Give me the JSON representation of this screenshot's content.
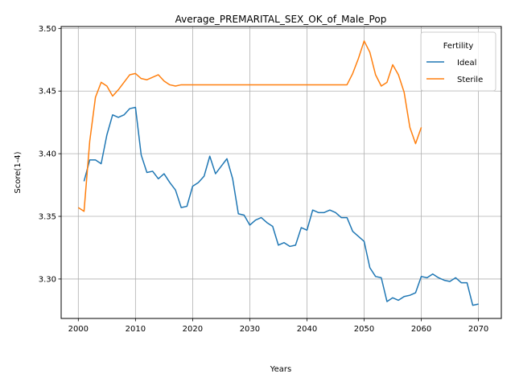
{
  "chart_data": {
    "type": "line",
    "title": "Average_PREMARITAL_SEX_OK_of_Male_Pop",
    "xlabel": "Years",
    "ylabel": "Score(1-4)",
    "xlim": [
      1997,
      2074
    ],
    "ylim": [
      3.2685,
      3.5015
    ],
    "xticks": [
      2000,
      2010,
      2020,
      2030,
      2040,
      2050,
      2060,
      2070
    ],
    "yticks": [
      3.3,
      3.35,
      3.4,
      3.45,
      3.5
    ],
    "ytick_labels": [
      "3.30",
      "3.35",
      "3.40",
      "3.45",
      "3.50"
    ],
    "grid": true,
    "legend": {
      "title": "Fertility",
      "placement": "top-right"
    },
    "series": [
      {
        "name": "Ideal",
        "color": "#1f77b4",
        "x": [
          2001,
          2002,
          2003,
          2004,
          2005,
          2006,
          2007,
          2008,
          2009,
          2010,
          2011,
          2012,
          2013,
          2014,
          2015,
          2016,
          2017,
          2018,
          2019,
          2020,
          2021,
          2022,
          2023,
          2024,
          2025,
          2026,
          2027,
          2028,
          2029,
          2030,
          2031,
          2032,
          2033,
          2034,
          2035,
          2036,
          2037,
          2038,
          2039,
          2040,
          2041,
          2042,
          2043,
          2044,
          2045,
          2046,
          2047,
          2048,
          2049,
          2050,
          2051,
          2052,
          2053,
          2054,
          2055,
          2056,
          2057,
          2058,
          2059,
          2060,
          2061,
          2062,
          2063,
          2064,
          2065,
          2066,
          2067,
          2068,
          2069,
          2070
        ],
        "y": [
          3.378,
          3.395,
          3.395,
          3.392,
          3.415,
          3.431,
          3.429,
          3.431,
          3.436,
          3.437,
          3.399,
          3.385,
          3.386,
          3.38,
          3.384,
          3.377,
          3.371,
          3.357,
          3.358,
          3.374,
          3.377,
          3.382,
          3.398,
          3.384,
          3.39,
          3.396,
          3.38,
          3.352,
          3.351,
          3.343,
          3.347,
          3.349,
          3.345,
          3.342,
          3.327,
          3.329,
          3.326,
          3.327,
          3.341,
          3.339,
          3.355,
          3.353,
          3.353,
          3.355,
          3.353,
          3.349,
          3.349,
          3.338,
          3.334,
          3.33,
          3.309,
          3.302,
          3.301,
          3.282,
          3.285,
          3.283,
          3.286,
          3.287,
          3.289,
          3.302,
          3.301,
          3.304,
          3.301,
          3.299,
          3.298,
          3.301,
          3.297,
          3.297,
          3.279,
          3.28
        ]
      },
      {
        "name": "Sterile",
        "color": "#ff7f0e",
        "x": [
          2000,
          2001,
          2002,
          2003,
          2004,
          2005,
          2006,
          2007,
          2008,
          2009,
          2010,
          2011,
          2012,
          2013,
          2014,
          2015,
          2016,
          2017,
          2018,
          2019,
          2020,
          2021,
          2022,
          2023,
          2024,
          2025,
          2026,
          2027,
          2028,
          2029,
          2030,
          2031,
          2032,
          2033,
          2034,
          2035,
          2036,
          2037,
          2038,
          2039,
          2040,
          2041,
          2042,
          2043,
          2044,
          2045,
          2046,
          2047,
          2048,
          2049,
          2050,
          2051,
          2052,
          2053,
          2054,
          2055,
          2056,
          2057,
          2058,
          2059,
          2060
        ],
        "y": [
          3.357,
          3.354,
          3.41,
          3.445,
          3.457,
          3.454,
          3.446,
          3.451,
          3.457,
          3.463,
          3.464,
          3.46,
          3.459,
          3.461,
          3.463,
          3.458,
          3.455,
          3.454,
          3.455,
          3.455,
          3.455,
          3.455,
          3.455,
          3.455,
          3.455,
          3.455,
          3.455,
          3.455,
          3.455,
          3.455,
          3.455,
          3.455,
          3.455,
          3.455,
          3.455,
          3.455,
          3.455,
          3.455,
          3.455,
          3.455,
          3.455,
          3.455,
          3.455,
          3.455,
          3.455,
          3.455,
          3.455,
          3.455,
          3.464,
          3.476,
          3.49,
          3.481,
          3.463,
          3.454,
          3.457,
          3.471,
          3.463,
          3.449,
          3.421,
          3.408,
          3.421
        ]
      }
    ]
  }
}
